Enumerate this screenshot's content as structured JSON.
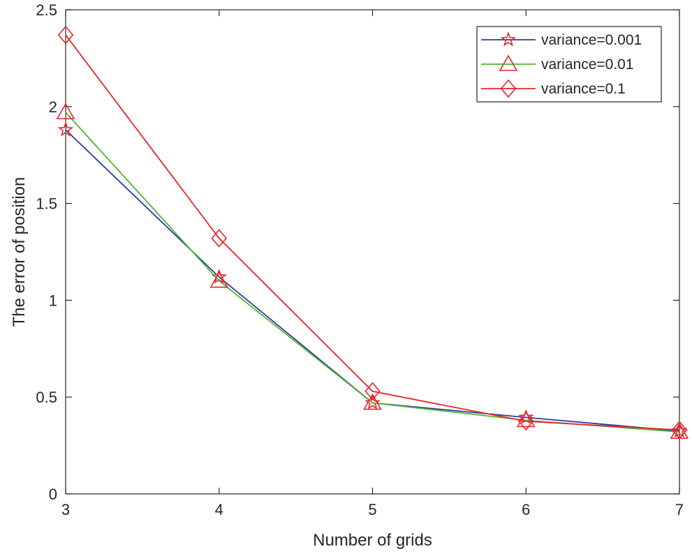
{
  "chart_data": {
    "type": "line",
    "title": "",
    "xlabel": "Number of grids",
    "ylabel": "The error of position",
    "xlim": [
      3,
      7
    ],
    "ylim": [
      0,
      2.5
    ],
    "xticks": [
      "3",
      "4",
      "5",
      "6",
      "7"
    ],
    "yticks": [
      "0",
      "0.5",
      "1",
      "1.5",
      "2",
      "2.5"
    ],
    "x": [
      3,
      4,
      5,
      6,
      7
    ],
    "legend_position": "top-right",
    "series": [
      {
        "name": "variance=0.001",
        "values": [
          1.88,
          1.12,
          0.47,
          0.395,
          0.325
        ],
        "line_color": "#2b3b9e",
        "marker": "star",
        "marker_color": "#e8242b"
      },
      {
        "name": "variance=0.01",
        "values": [
          1.97,
          1.1,
          0.47,
          0.38,
          0.32
        ],
        "line_color": "#52b530",
        "marker": "triangle",
        "marker_color": "#e8242b"
      },
      {
        "name": "variance=0.1",
        "values": [
          2.37,
          1.32,
          0.53,
          0.375,
          0.33
        ],
        "line_color": "#e8242b",
        "marker": "diamond",
        "marker_color": "#e8242b"
      }
    ]
  }
}
